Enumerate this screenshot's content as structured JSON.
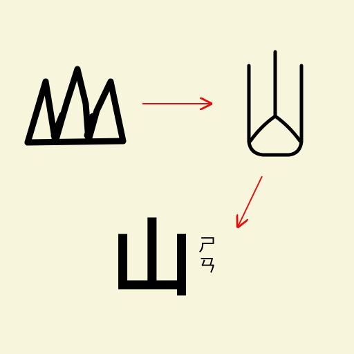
{
  "colors": {
    "background": "#f7f5dc",
    "ink": "#000000",
    "arrow": "#e01010"
  },
  "icons": {
    "ancient_form": "oracle-bone-mountain-glyph",
    "seal_form": "seal-script-mountain-glyph",
    "arrow_1": "arrow-right-icon",
    "arrow_2": "arrow-down-left-icon"
  },
  "modern": {
    "character": "山",
    "zhuyin": [
      "ㄕ",
      "ㄢ"
    ]
  }
}
